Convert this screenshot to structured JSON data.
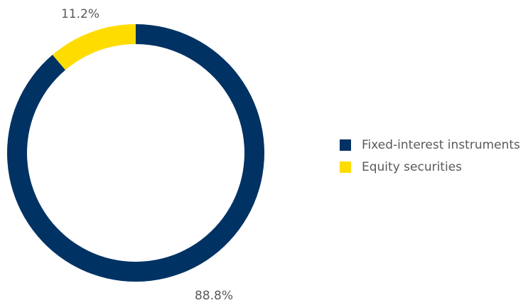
{
  "chart_data": {
    "type": "pie",
    "title": "",
    "categories": [
      "Fixed-interest instruments",
      "Equity securities"
    ],
    "values": [
      88.8,
      11.2
    ],
    "data_labels": [
      "88.8%",
      "11.2%"
    ],
    "colors": [
      "#003263",
      "#ffdc00"
    ],
    "legend_position": "right",
    "style": "donut"
  }
}
